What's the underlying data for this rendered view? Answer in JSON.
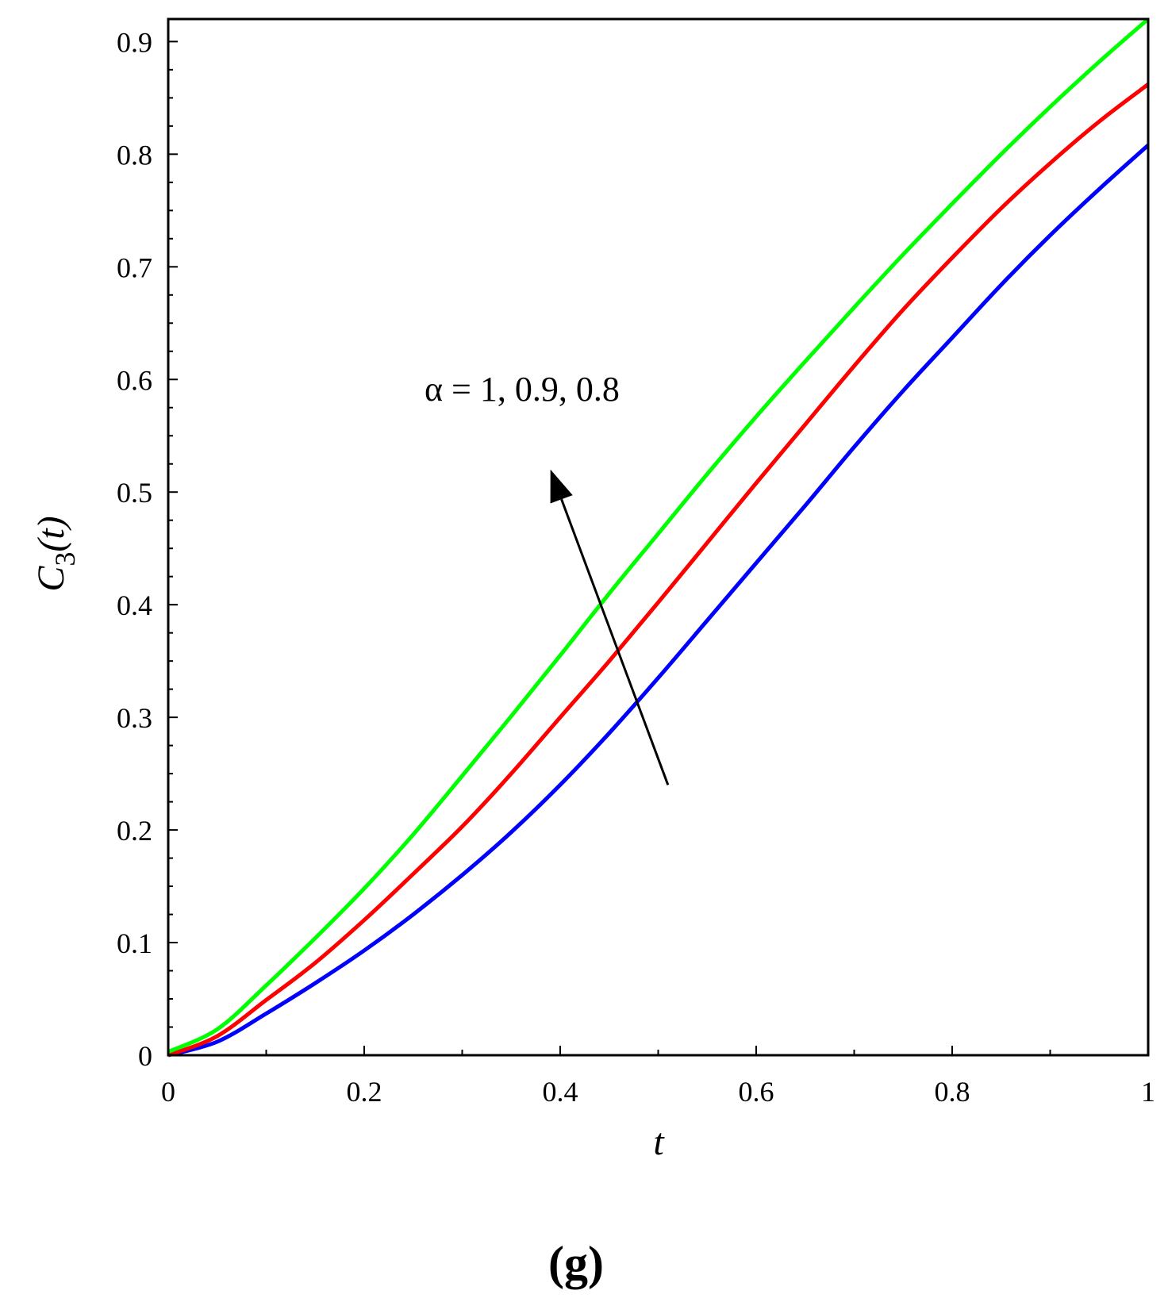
{
  "chart_data": {
    "type": "line",
    "title": "",
    "xlabel": "t",
    "ylabel": {
      "main": "C",
      "sub": "3",
      "arg": "(t)"
    },
    "xlim": [
      0,
      1
    ],
    "ylim": [
      0,
      0.92
    ],
    "xticks": [
      0,
      0.2,
      0.4,
      0.6,
      0.8,
      1
    ],
    "xtick_labels": [
      "0",
      "0.2",
      "0.4",
      "0.6",
      "0.8",
      "1"
    ],
    "yticks": [
      0,
      0.1,
      0.2,
      0.3,
      0.4,
      0.5,
      0.6,
      0.7,
      0.8,
      0.9
    ],
    "ytick_labels": [
      "0",
      "0.1",
      "0.2",
      "0.3",
      "0.4",
      "0.5",
      "0.6",
      "0.7",
      "0.8",
      "0.9"
    ],
    "grid": false,
    "legend": "none",
    "x": [
      0,
      0.05,
      0.1,
      0.15,
      0.2,
      0.25,
      0.3,
      0.35,
      0.4,
      0.45,
      0.5,
      0.55,
      0.6,
      0.65,
      0.7,
      0.75,
      0.8,
      0.85,
      0.9,
      0.95,
      1.0
    ],
    "series": [
      {
        "color": "#0000ff",
        "values": [
          0,
          0.012,
          0.037,
          0.064,
          0.093,
          0.125,
          0.16,
          0.198,
          0.24,
          0.286,
          0.335,
          0.386,
          0.437,
          0.488,
          0.54,
          0.59,
          0.637,
          0.684,
          0.728,
          0.769,
          0.808
        ]
      },
      {
        "color": "#ff0000",
        "values": [
          0,
          0.017,
          0.049,
          0.082,
          0.12,
          0.161,
          0.203,
          0.25,
          0.3,
          0.35,
          0.402,
          0.455,
          0.508,
          0.56,
          0.612,
          0.662,
          0.708,
          0.752,
          0.792,
          0.829,
          0.862
        ]
      },
      {
        "color": "#00ff00",
        "values": [
          0.003,
          0.023,
          0.062,
          0.104,
          0.148,
          0.196,
          0.248,
          0.301,
          0.355,
          0.41,
          0.463,
          0.516,
          0.567,
          0.616,
          0.664,
          0.711,
          0.756,
          0.8,
          0.842,
          0.882,
          0.92
        ]
      }
    ],
    "annotation": {
      "text": "α = 1, 0.9, 0.8",
      "arrow_from": [
        0.51,
        0.24
      ],
      "arrow_to": [
        0.39,
        0.52
      ]
    },
    "panel_label": "(g)"
  }
}
